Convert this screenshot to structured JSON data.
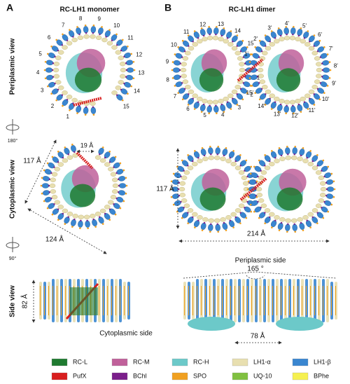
{
  "panels": [
    {
      "letter": "A",
      "title": "RC-LH1 monomer",
      "ring_labels": [
        "1",
        "2",
        "3",
        "4",
        "5",
        "6",
        "7",
        "8",
        "9",
        "10",
        "11",
        "12",
        "13",
        "14",
        "15"
      ]
    },
    {
      "letter": "B",
      "title": "RC-LH1 dimer",
      "ring_labels": [
        "1",
        "2",
        "3",
        "4",
        "5",
        "6",
        "7",
        "8",
        "9",
        "10",
        "11",
        "12",
        "13",
        "14",
        "15"
      ],
      "ring_labels_primed": [
        "1'",
        "2'",
        "3'",
        "4'",
        "5'",
        "6'",
        "7'",
        "8'",
        "9'",
        "10'",
        "11'",
        "12'",
        "13'",
        "14'",
        "15'"
      ]
    }
  ],
  "row_labels": [
    "Periplasmic view",
    "Cytoplasmic view",
    "Side view"
  ],
  "rotations": [
    "180°",
    "90°"
  ],
  "measurements": {
    "monomer_gap": "19 Å",
    "monomer_height": "117 Å",
    "monomer_width": "124 Å",
    "dimer_height": "117 Å",
    "dimer_width": "214 Å",
    "angle": "165 °",
    "side_height": "82 Å",
    "side_width": "78 Å"
  },
  "sides": {
    "top": "Periplasmic side",
    "bottom": "Cytoplasmic side"
  },
  "legend": [
    {
      "label": "RC-L",
      "color": "#1f7a30"
    },
    {
      "label": "RC-M",
      "color": "#c0609a"
    },
    {
      "label": "RC-H",
      "color": "#6cc9c9"
    },
    {
      "label": "LH1-α",
      "color": "#e8dfb0"
    },
    {
      "label": "LH1-β",
      "color": "#3a86d0"
    },
    {
      "label": "PufX",
      "color": "#d81e1e"
    },
    {
      "label": "BChl",
      "color": "#7a1e8a"
    },
    {
      "label": "SPO",
      "color": "#f0a020"
    },
    {
      "label": "UQ-10",
      "color": "#80c040"
    },
    {
      "label": "BPhe",
      "color": "#f5f050"
    }
  ]
}
